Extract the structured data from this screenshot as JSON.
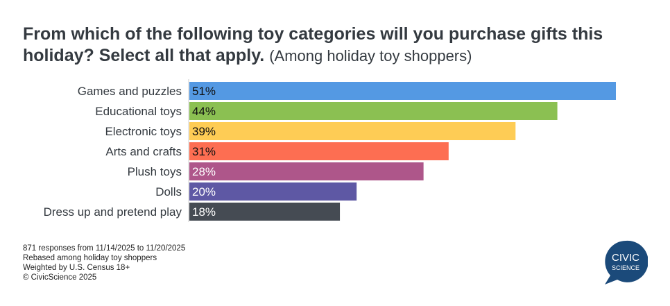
{
  "title": "From which of the following toy categories will you purchase gifts this holiday? Select all that apply.",
  "subtitle": "(Among holiday toy shoppers)",
  "chart_data": {
    "type": "bar",
    "orientation": "horizontal",
    "categories": [
      "Games and puzzles",
      "Educational toys",
      "Electronic toys",
      "Arts and crafts",
      "Plush toys",
      "Dolls",
      "Dress up and pretend play"
    ],
    "values": [
      51,
      44,
      39,
      31,
      28,
      20,
      18
    ],
    "labels": [
      "51%",
      "44%",
      "39%",
      "31%",
      "28%",
      "20%",
      "18%"
    ],
    "colors": [
      "#5499e3",
      "#8bc052",
      "#fecc55",
      "#fd6e52",
      "#ae568a",
      "#5e58a4",
      "#454b53"
    ],
    "label_colors": [
      "#111",
      "#111",
      "#111",
      "#111",
      "#fff",
      "#fff",
      "#fff"
    ],
    "xlim": [
      0,
      51
    ],
    "grid": false
  },
  "footer": [
    "871 responses from 11/14/2025 to 11/20/2025",
    "Rebased among holiday toy shoppers",
    "Weighted by U.S. Census 18+",
    "© CivicScience 2025"
  ],
  "logo": {
    "line1": "CIVIC",
    "line2": "SCIENCE",
    "color": "#1b4a7a"
  }
}
